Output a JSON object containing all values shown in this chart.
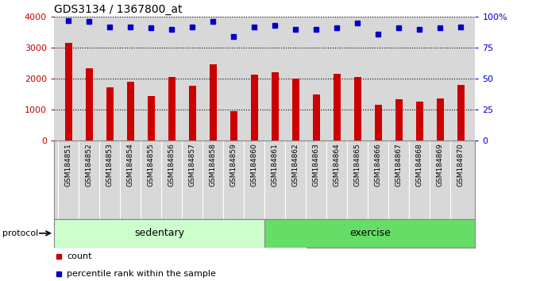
{
  "title": "GDS3134 / 1367800_at",
  "samples": [
    "GSM184851",
    "GSM184852",
    "GSM184853",
    "GSM184854",
    "GSM184855",
    "GSM184856",
    "GSM184857",
    "GSM184858",
    "GSM184859",
    "GSM184860",
    "GSM184861",
    "GSM184862",
    "GSM184863",
    "GSM184864",
    "GSM184865",
    "GSM184866",
    "GSM184867",
    "GSM184868",
    "GSM184869",
    "GSM184870"
  ],
  "counts": [
    3170,
    2340,
    1730,
    1890,
    1450,
    2050,
    1760,
    2460,
    940,
    2120,
    2200,
    2010,
    1490,
    2170,
    2060,
    1160,
    1330,
    1250,
    1350,
    1810
  ],
  "percentiles": [
    97,
    96,
    92,
    92,
    91,
    90,
    92,
    96,
    84,
    92,
    93,
    90,
    90,
    91,
    95,
    86,
    91,
    90,
    91,
    92
  ],
  "group_labels": [
    "sedentary",
    "exercise"
  ],
  "group_counts": [
    10,
    10
  ],
  "group_colors_light": [
    "#ccffcc",
    "#66dd66"
  ],
  "bar_color": "#cc0000",
  "dot_color": "#0000cc",
  "ylim_left": [
    0,
    4000
  ],
  "ylim_right": [
    0,
    100
  ],
  "yticks_left": [
    0,
    1000,
    2000,
    3000,
    4000
  ],
  "ytick_labels_right": [
    "0",
    "25",
    "50",
    "75",
    "100%"
  ],
  "yticks_right": [
    0,
    25,
    50,
    75,
    100
  ],
  "background_color": "#d8d8d8",
  "legend_count_label": "count",
  "legend_pct_label": "percentile rank within the sample",
  "protocol_label": "protocol"
}
